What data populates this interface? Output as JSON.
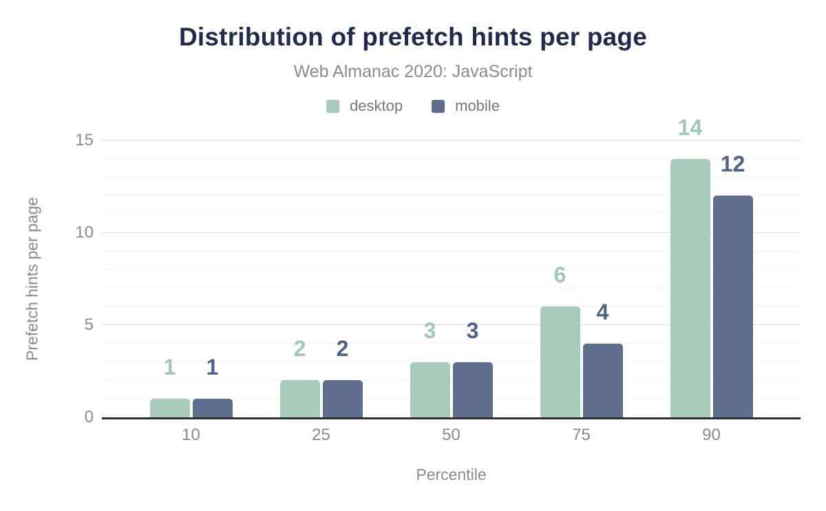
{
  "chart_data": {
    "type": "bar",
    "title": "Distribution of prefetch hints per page",
    "subtitle": "Web Almanac 2020: JavaScript",
    "xlabel": "Percentile",
    "ylabel": "Prefetch hints per page",
    "categories": [
      "10",
      "25",
      "50",
      "75",
      "90"
    ],
    "series": [
      {
        "name": "desktop",
        "values": [
          1,
          2,
          3,
          6,
          14
        ],
        "color": "#a9cbbb",
        "label_color": "#a2c7b6"
      },
      {
        "name": "mobile",
        "values": [
          1,
          2,
          3,
          4,
          12
        ],
        "color": "#5e6e8c",
        "label_color": "#4f6389"
      }
    ],
    "yticks": [
      0,
      5,
      10,
      15
    ],
    "ylim": [
      0,
      16
    ],
    "grid": "horizontal-minor-every-1-major-every-5",
    "legend_position": "top",
    "bar_value_labels": true
  },
  "style": {
    "title_color": "#1f2b49",
    "subtitle_color": "#8b8b8b",
    "tick_color": "#8a8a8a",
    "axis_line_color": "#2e2e2e",
    "major_grid_color": "#dcdcdc",
    "minor_grid_color": "#f3f3f3",
    "background": "#ffffff"
  }
}
